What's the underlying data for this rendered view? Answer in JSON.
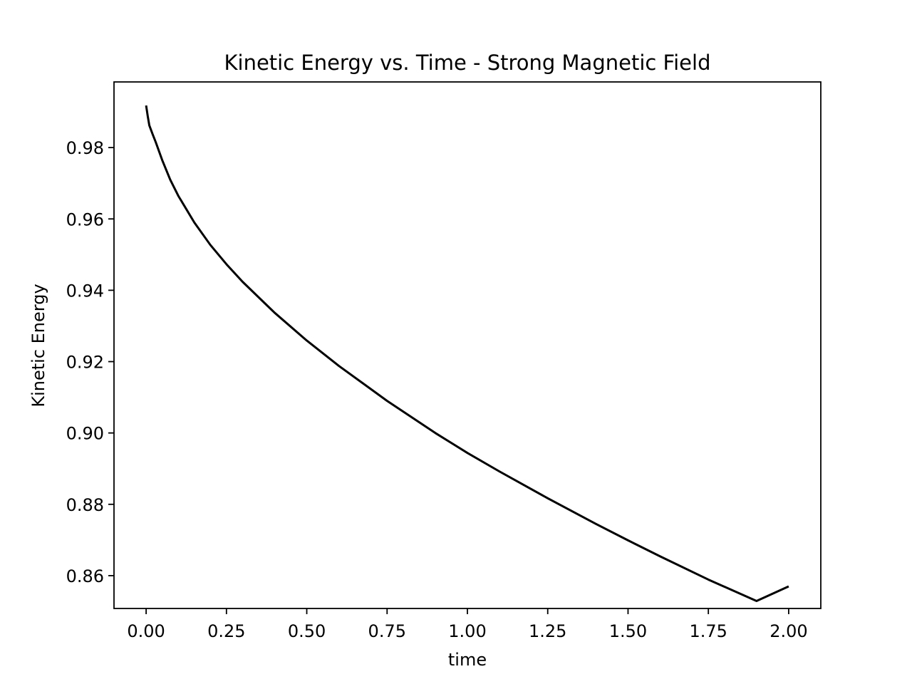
{
  "chart_data": {
    "type": "line",
    "title": "Kinetic Energy vs. Time - Strong Magnetic Field",
    "xlabel": "time",
    "ylabel": "Kinetic Energy",
    "xlim": [
      -0.1,
      2.1
    ],
    "ylim": [
      0.8508,
      0.9984
    ],
    "xticks": [
      0.0,
      0.25,
      0.5,
      0.75,
      1.0,
      1.25,
      1.5,
      1.75,
      2.0
    ],
    "xtick_labels": [
      "0.00",
      "0.25",
      "0.50",
      "0.75",
      "1.00",
      "1.25",
      "1.50",
      "1.75",
      "2.00"
    ],
    "yticks": [
      0.86,
      0.88,
      0.9,
      0.92,
      0.94,
      0.96,
      0.98
    ],
    "ytick_labels": [
      "0.86",
      "0.88",
      "0.90",
      "0.92",
      "0.94",
      "0.96",
      "0.98"
    ],
    "grid": false,
    "series": [
      {
        "color": "#000000",
        "x": [
          0.0,
          0.005,
          0.01,
          0.02,
          0.03,
          0.05,
          0.075,
          0.1,
          0.15,
          0.2,
          0.25,
          0.3,
          0.4,
          0.5,
          0.6,
          0.75,
          0.9,
          1.0,
          1.1,
          1.25,
          1.4,
          1.5,
          1.6,
          1.75,
          1.9,
          2.0
        ],
        "y": [
          0.9918,
          0.9888,
          0.9862,
          0.9838,
          0.9815,
          0.9765,
          0.971,
          0.9665,
          0.959,
          0.9527,
          0.9473,
          0.9424,
          0.9337,
          0.9259,
          0.9188,
          0.909,
          0.9,
          0.8944,
          0.8892,
          0.8817,
          0.8745,
          0.8699,
          0.8654,
          0.8589,
          0.8529,
          0.857
        ]
      }
    ]
  }
}
